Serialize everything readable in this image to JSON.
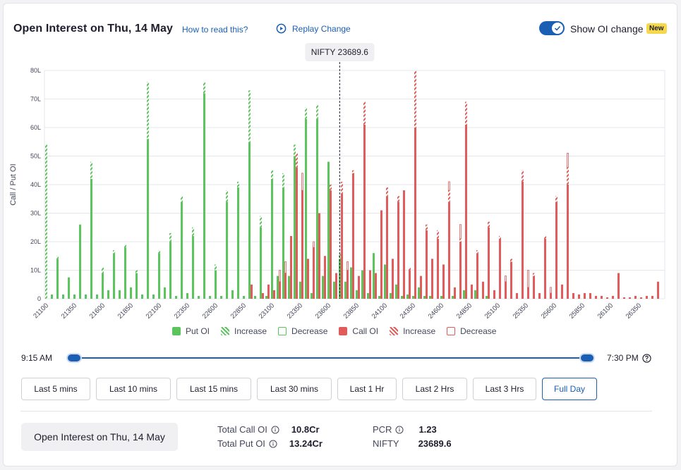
{
  "header": {
    "title": "Open Interest on Thu, 14 May",
    "how_to_read": "How to read this?",
    "replay_change": "Replay Change",
    "show_oi_change": "Show OI change",
    "new_badge": "New",
    "toggle_on": true
  },
  "colors": {
    "put": "#5cc45c",
    "call": "#e25b5b",
    "accent": "#1a5fb4"
  },
  "chart_data": {
    "type": "bar",
    "ylabel": "Call / Put OI",
    "y_ticks": [
      "0",
      "10L",
      "20L",
      "30L",
      "40L",
      "50L",
      "60L",
      "70L",
      "80L"
    ],
    "ylim": [
      0,
      80
    ],
    "y_unit": "L",
    "x_tick_labels": [
      "21100",
      "21350",
      "21600",
      "21850",
      "22100",
      "22350",
      "22600",
      "22850",
      "23100",
      "23350",
      "23600",
      "23850",
      "24100",
      "24350",
      "24600",
      "24850",
      "25100",
      "25350",
      "25600",
      "25850",
      "26100",
      "26350"
    ],
    "strike_step": 50,
    "strike_start": 21100,
    "spot": {
      "label": "NIFTY 23689.6",
      "value": 23689.6
    },
    "series": [
      {
        "name": "Put OI",
        "strikes": [
          21100,
          21150,
          21200,
          21250,
          21300,
          21350,
          21400,
          21450,
          21500,
          21550,
          21600,
          21650,
          21700,
          21750,
          21800,
          21850,
          21900,
          21950,
          22000,
          22050,
          22100,
          22150,
          22200,
          22250,
          22300,
          22350,
          22400,
          22450,
          22500,
          22550,
          22600,
          22650,
          22700,
          22750,
          22800,
          22850,
          22900,
          22950,
          23000,
          23050,
          23100,
          23150,
          23200,
          23250,
          23300,
          23350,
          23400,
          23450,
          23500,
          23550,
          23600,
          23650,
          23700,
          23750,
          23800,
          23850,
          23900,
          23950,
          24000,
          24050,
          24100,
          24150,
          24200,
          24250,
          24300,
          24350,
          24400,
          24450,
          24500,
          24550,
          24600,
          24650,
          24700,
          24750,
          24800,
          24850,
          24900,
          24950,
          25000
        ],
        "values": [
          54,
          1.5,
          15,
          1.5,
          7.5,
          1.5,
          26,
          1.5,
          48,
          1.5,
          11,
          3,
          17,
          3,
          19,
          4,
          10,
          1.5,
          76,
          1.5,
          17,
          4,
          23,
          1,
          36,
          2,
          25,
          1,
          76,
          1,
          12,
          1,
          38,
          3,
          41,
          1,
          73,
          1,
          29,
          1,
          45,
          8,
          44,
          8,
          54,
          6,
          67,
          2,
          68,
          8,
          48,
          6,
          16,
          6,
          11,
          3,
          10,
          2,
          16,
          1,
          12,
          2,
          5,
          1,
          1.5,
          1,
          4,
          1,
          1,
          0,
          1,
          0,
          1,
          0,
          3,
          0,
          3,
          0,
          1
        ],
        "increase": [
          54,
          0,
          1,
          0,
          0,
          0,
          0,
          0,
          6,
          0,
          2,
          0,
          1,
          0,
          1,
          0,
          1,
          0,
          20,
          0,
          1,
          0,
          3,
          0,
          2,
          0,
          3,
          0,
          4,
          0,
          2,
          0,
          4,
          0,
          2,
          0,
          18,
          0,
          4,
          0,
          3,
          0,
          5,
          0,
          4,
          0,
          4,
          0,
          5,
          0,
          0,
          0,
          2,
          0,
          0,
          0,
          0,
          0,
          0,
          0,
          0,
          0,
          0,
          0,
          0,
          0,
          0,
          0,
          0,
          0,
          0,
          0,
          0,
          0,
          0,
          0,
          0,
          0,
          0
        ]
      },
      {
        "name": "Call OI",
        "strikes": [
          22900,
          23000,
          23050,
          23100,
          23150,
          23200,
          23250,
          23300,
          23350,
          23400,
          23450,
          23500,
          23550,
          23600,
          23650,
          23700,
          23750,
          23800,
          23850,
          23900,
          23950,
          24000,
          24050,
          24100,
          24150,
          24200,
          24250,
          24300,
          24350,
          24400,
          24450,
          24500,
          24550,
          24600,
          24650,
          24700,
          24750,
          24800,
          24850,
          24900,
          24950,
          25000,
          25050,
          25100,
          25150,
          25200,
          25250,
          25300,
          25350,
          25400,
          25450,
          25500,
          25550,
          25600,
          25650,
          25700,
          25750,
          25800,
          25850,
          25900,
          25950,
          26000,
          26050,
          26100,
          26150,
          26200,
          26250,
          26300,
          26350,
          26400,
          26450,
          26500
        ],
        "values": [
          5,
          2,
          5,
          3,
          6,
          9,
          22,
          51,
          38,
          14,
          18,
          30,
          15,
          40,
          9,
          41,
          10,
          45,
          8,
          69,
          10,
          9,
          31,
          39,
          14,
          36,
          38,
          11,
          80,
          8,
          26,
          14,
          24,
          12,
          38,
          4,
          21,
          69,
          5,
          17,
          6,
          27,
          3,
          22,
          6,
          14,
          2,
          45,
          4,
          9,
          2,
          22,
          2,
          36,
          5,
          46,
          2,
          1.5,
          2,
          2,
          1,
          1,
          0.5,
          1,
          9,
          0.5,
          0.5,
          1,
          0.5,
          1,
          1,
          6
        ],
        "increase": [
          0,
          0,
          0,
          0,
          0,
          0,
          0,
          5,
          0,
          0,
          0,
          0,
          0,
          2,
          0,
          4,
          0,
          1,
          0,
          8,
          0,
          0,
          0,
          3,
          0,
          2,
          0,
          1,
          20,
          0,
          2,
          0,
          3,
          0,
          4,
          0,
          1,
          8,
          0,
          1,
          0,
          2,
          0,
          1,
          0,
          1,
          0,
          4,
          0,
          1,
          0,
          1,
          0,
          2,
          0,
          6,
          0,
          0,
          0,
          0,
          0,
          0,
          0,
          0,
          0,
          0,
          0,
          0,
          0,
          0,
          0,
          0
        ],
        "decrease": [
          0,
          0,
          0,
          0,
          4,
          4,
          0,
          0,
          6,
          0,
          2,
          0,
          0,
          0,
          0,
          0,
          3,
          0,
          0,
          0,
          0,
          0,
          0,
          0,
          0,
          0,
          0,
          0,
          0,
          0,
          0,
          0,
          0,
          0,
          3,
          0,
          5,
          0,
          0,
          0,
          0,
          0,
          0,
          0,
          2,
          0,
          0,
          0,
          6,
          0,
          0,
          0,
          2,
          0,
          0,
          5,
          0,
          0,
          0,
          0,
          0,
          0,
          0,
          0,
          0,
          0,
          0,
          0,
          0,
          0,
          0,
          0
        ]
      }
    ],
    "legend": [
      {
        "label": "Put OI",
        "kind": "put-solid"
      },
      {
        "label": "Increase",
        "kind": "put-hatch"
      },
      {
        "label": "Decrease",
        "kind": "put-outline"
      },
      {
        "label": "Call OI",
        "kind": "call-solid"
      },
      {
        "label": "Increase",
        "kind": "call-hatch"
      },
      {
        "label": "Decrease",
        "kind": "call-outline"
      }
    ],
    "grid": true,
    "legend_position": "bottom"
  },
  "time_range": {
    "start": "9:15 AM",
    "end": "7:30 PM",
    "start_fraction": 0,
    "end_fraction": 1
  },
  "range_buttons": [
    {
      "label": "Last 5 mins",
      "active": false
    },
    {
      "label": "Last 10 mins",
      "active": false
    },
    {
      "label": "Last 15 mins",
      "active": false
    },
    {
      "label": "Last 30 mins",
      "active": false
    },
    {
      "label": "Last 1 Hr",
      "active": false
    },
    {
      "label": "Last 2 Hrs",
      "active": false
    },
    {
      "label": "Last 3 Hrs",
      "active": false
    },
    {
      "label": "Full Day",
      "active": true
    }
  ],
  "footer": {
    "title": "Open Interest on Thu, 14 May",
    "total_call_oi_label": "Total Call OI",
    "total_call_oi": "10.8Cr",
    "total_put_oi_label": "Total Put OI",
    "total_put_oi": "13.24Cr",
    "pcr_label": "PCR",
    "pcr": "1.23",
    "nifty_label": "NIFTY",
    "nifty": "23689.6"
  }
}
